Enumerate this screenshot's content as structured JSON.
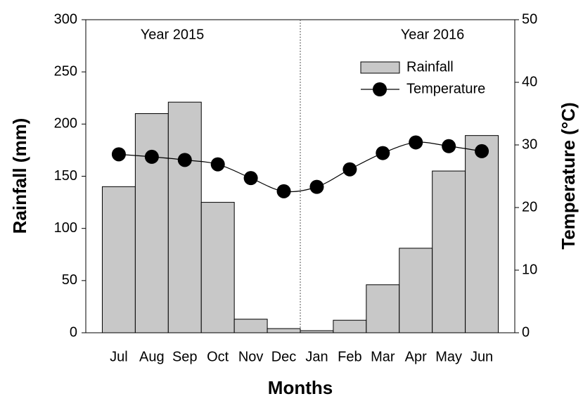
{
  "chart_data": {
    "type": "bar",
    "categories": [
      "Jul",
      "Aug",
      "Sep",
      "Oct",
      "Nov",
      "Dec",
      "Jan",
      "Feb",
      "Mar",
      "Apr",
      "May",
      "Jun"
    ],
    "series": [
      {
        "name": "Rainfall",
        "type": "bar",
        "color": "#c8c8c8",
        "values": [
          140,
          210,
          221,
          125,
          13,
          4,
          2,
          12,
          46,
          81,
          155,
          189
        ]
      },
      {
        "name": "Temperature",
        "type": "line",
        "axis": "y2",
        "color": "#000000",
        "values": [
          28.5,
          28.1,
          27.6,
          26.9,
          24.7,
          22.6,
          23.3,
          26.1,
          28.7,
          30.4,
          29.8,
          29.0
        ]
      }
    ],
    "xlabel": "Months",
    "ylabel": "Rainfall (mm)",
    "y2label": "Temperature (°C)",
    "annotations": [
      "Year 2015",
      "Year 2016"
    ],
    "ylim": [
      0,
      300
    ],
    "yticks": [
      0,
      50,
      100,
      150,
      200,
      250,
      300
    ],
    "y2lim": [
      0,
      50
    ],
    "y2ticks": [
      0,
      10,
      20,
      30,
      40,
      50
    ],
    "legend": "upper right"
  }
}
